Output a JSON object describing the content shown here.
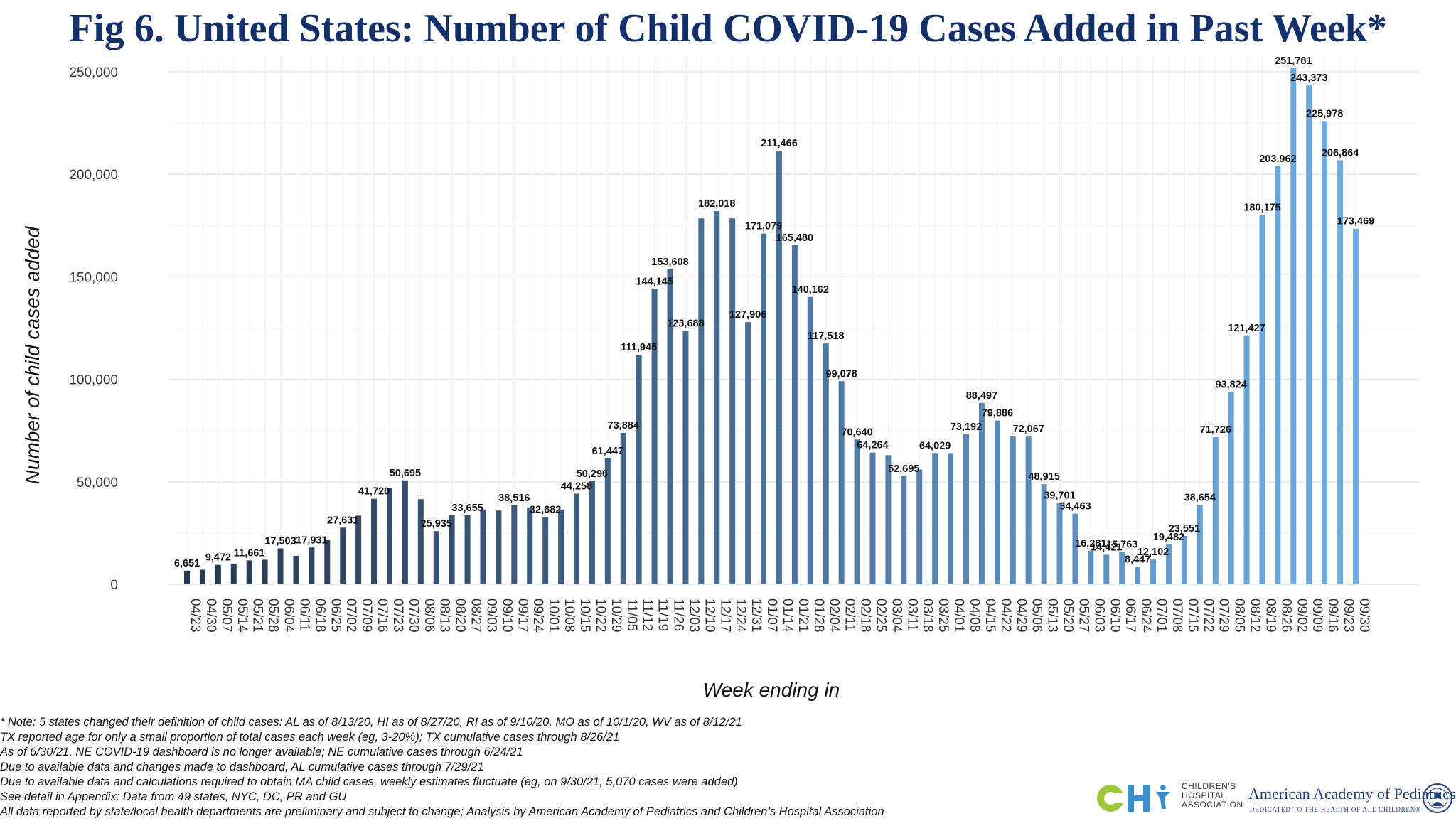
{
  "chart_data": {
    "type": "bar",
    "title": "Fig 6. United States: Number of Child COVID-19 Cases Added in Past Week*",
    "xlabel": "Week ending in",
    "ylabel": "Number of child cases added",
    "ylim": [
      0,
      250000
    ],
    "yticks": [
      0,
      50000,
      100000,
      150000,
      200000,
      250000
    ],
    "ytick_labels": [
      "0",
      "50,000",
      "100,000",
      "150,000",
      "200,000",
      "250,000"
    ],
    "grid": true,
    "color_start": "#27374f",
    "color_end": "#6faee6",
    "categories": [
      "04/23",
      "04/30",
      "05/07",
      "05/14",
      "05/21",
      "05/28",
      "06/04",
      "06/11",
      "06/18",
      "06/25",
      "07/02",
      "07/09",
      "07/16",
      "07/23",
      "07/30",
      "08/06",
      "08/13",
      "08/20",
      "08/27",
      "09/03",
      "09/10",
      "09/17",
      "09/24",
      "10/01",
      "10/08",
      "10/15",
      "10/22",
      "10/29",
      "11/05",
      "11/12",
      "11/19",
      "11/26",
      "12/03",
      "12/10",
      "12/17",
      "12/24",
      "12/31",
      "01/07",
      "01/14",
      "01/21",
      "01/28",
      "02/04",
      "02/11",
      "02/18",
      "02/25",
      "03/04",
      "03/11",
      "03/18",
      "03/25",
      "04/01",
      "04/08",
      "04/15",
      "04/22",
      "04/29",
      "05/06",
      "05/13",
      "05/20",
      "05/27",
      "06/03",
      "06/10",
      "06/17",
      "06/24",
      "07/01",
      "07/08",
      "07/15",
      "07/22",
      "07/29",
      "08/05",
      "08/12",
      "08/19",
      "08/26",
      "09/02",
      "09/09",
      "09/16",
      "09/23",
      "09/30"
    ],
    "values": [
      6651,
      7100,
      9472,
      9800,
      11661,
      12000,
      17503,
      13900,
      17931,
      21500,
      27631,
      33500,
      41720,
      47000,
      50695,
      41500,
      25935,
      33655,
      33655,
      36500,
      36000,
      38516,
      37500,
      32682,
      36500,
      44258,
      50296,
      61447,
      73884,
      111945,
      144145,
      153608,
      123688,
      178500,
      182018,
      178500,
      127906,
      171079,
      211466,
      165480,
      140162,
      117518,
      99078,
      70640,
      64264,
      63000,
      52695,
      56000,
      64029,
      64000,
      73192,
      88497,
      79886,
      72067,
      72067,
      48915,
      39701,
      34463,
      16281,
      14421,
      15763,
      8447,
      12102,
      19482,
      23551,
      38654,
      71726,
      93824,
      121427,
      180175,
      203962,
      251781,
      243373,
      225978,
      206864,
      173469
    ],
    "data_labels": [
      {
        "index": 0,
        "label": "6,651"
      },
      {
        "index": 2,
        "label": "9,472"
      },
      {
        "index": 4,
        "label": "11,661"
      },
      {
        "index": 6,
        "label": "17,503"
      },
      {
        "index": 8,
        "label": "17,931"
      },
      {
        "index": 10,
        "label": "27,631"
      },
      {
        "index": 12,
        "label": "41,720"
      },
      {
        "index": 14,
        "label": "50,695"
      },
      {
        "index": 16,
        "label": "25,935"
      },
      {
        "index": 18,
        "label": "33,655"
      },
      {
        "index": 21,
        "label": "38,516"
      },
      {
        "index": 23,
        "label": "32,682"
      },
      {
        "index": 25,
        "label": "44,258"
      },
      {
        "index": 26,
        "label": "50,296"
      },
      {
        "index": 27,
        "label": "61,447"
      },
      {
        "index": 28,
        "label": "73,884"
      },
      {
        "index": 29,
        "label": "111,945"
      },
      {
        "index": 30,
        "label": "144,145"
      },
      {
        "index": 31,
        "label": "153,608"
      },
      {
        "index": 32,
        "label": "123,688"
      },
      {
        "index": 34,
        "label": "182,018"
      },
      {
        "index": 36,
        "label": "127,906"
      },
      {
        "index": 37,
        "label": "171,079"
      },
      {
        "index": 38,
        "label": "211,466"
      },
      {
        "index": 39,
        "label": "165,480"
      },
      {
        "index": 40,
        "label": "140,162"
      },
      {
        "index": 41,
        "label": "117,518"
      },
      {
        "index": 42,
        "label": "99,078"
      },
      {
        "index": 43,
        "label": "70,640"
      },
      {
        "index": 44,
        "label": "64,264"
      },
      {
        "index": 46,
        "label": "52,695"
      },
      {
        "index": 48,
        "label": "64,029"
      },
      {
        "index": 50,
        "label": "73,192"
      },
      {
        "index": 51,
        "label": "88,497"
      },
      {
        "index": 52,
        "label": "79,886"
      },
      {
        "index": 54,
        "label": "72,067"
      },
      {
        "index": 55,
        "label": "48,915"
      },
      {
        "index": 56,
        "label": "39,701"
      },
      {
        "index": 57,
        "label": "34,463"
      },
      {
        "index": 58,
        "label": "16,281"
      },
      {
        "index": 59,
        "label": "14,421"
      },
      {
        "index": 60,
        "label": "15,763"
      },
      {
        "index": 61,
        "label": "8,447"
      },
      {
        "index": 62,
        "label": "12,102"
      },
      {
        "index": 63,
        "label": "19,482"
      },
      {
        "index": 64,
        "label": "23,551"
      },
      {
        "index": 65,
        "label": "38,654"
      },
      {
        "index": 66,
        "label": "71,726"
      },
      {
        "index": 67,
        "label": "93,824"
      },
      {
        "index": 68,
        "label": "121,427"
      },
      {
        "index": 69,
        "label": "180,175"
      },
      {
        "index": 70,
        "label": "203,962"
      },
      {
        "index": 71,
        "label": "251,781"
      },
      {
        "index": 72,
        "label": "243,373"
      },
      {
        "index": 73,
        "label": "225,978"
      },
      {
        "index": 74,
        "label": "206,864"
      },
      {
        "index": 75,
        "label": "173,469"
      }
    ]
  },
  "notes": [
    "* Note: 5 states changed their definition of child cases: AL as of 8/13/20, HI as of 8/27/20, RI as of 9/10/20, MO as of 10/1/20, WV as of 8/12/21",
    "TX reported age for only a small proportion of total cases each week (eg, 3-20%); TX cumulative cases through 8/26/21",
    "As of 6/30/21, NE COVID-19 dashboard is no longer available; NE cumulative cases through 6/24/21",
    "Due to available data and changes made to dashboard, AL cumulative cases through 7/29/21",
    "Due to available data and calculations required to obtain MA child cases, weekly estimates fluctuate (eg, on 9/30/21, 5,070 cases were added)",
    "See detail in Appendix: Data from 49 states, NYC, DC, PR and GU",
    "All data reported by state/local health departments are preliminary and subject to change; Analysis by American Academy of Pediatrics and Children’s Hospital Association"
  ],
  "logos": {
    "cha_text": "CHILDREN'S\nHOSPITAL\nASSOCIATION",
    "aap_name": "American Academy of Pediatrics",
    "aap_tagline": "DEDICATED TO THE HEALTH OF ALL CHILDREN®"
  }
}
